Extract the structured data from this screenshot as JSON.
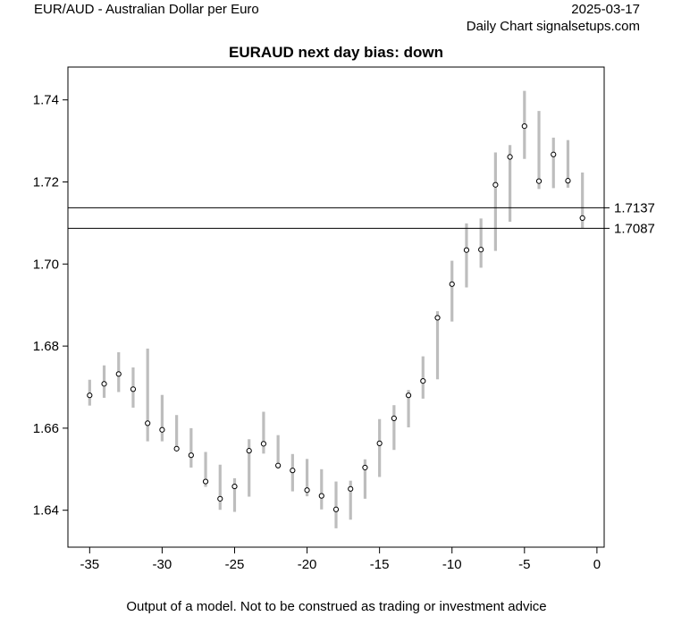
{
  "header": {
    "pair_title": "EUR/AUD - Australian Dollar per Euro",
    "date": "2025-03-17",
    "source": "Daily Chart signalsetups.com"
  },
  "footer": {
    "disclaimer": "Output of a model. Not to be construed as trading or investment advice"
  },
  "colors": {
    "range_bar": "#bdbdbd",
    "close_marker": "#000000",
    "level_line": "#000000"
  },
  "chart_data": {
    "type": "range-bar",
    "title": "EURAUD next day bias: down",
    "xlabel": "",
    "ylabel": "",
    "xlim": [
      -36.5,
      0.5
    ],
    "ylim": [
      1.631,
      1.748
    ],
    "x_ticks": [
      -35,
      -30,
      -25,
      -20,
      -15,
      -10,
      -5,
      0
    ],
    "y_ticks": [
      1.64,
      1.66,
      1.68,
      1.7,
      1.72,
      1.74
    ],
    "x_tick_labels": [
      "-35",
      "-30",
      "-25",
      "-20",
      "-15",
      "-10",
      "-5",
      "0"
    ],
    "y_tick_labels": [
      "1.64",
      "1.66",
      "1.68",
      "1.70",
      "1.72",
      "1.74"
    ],
    "grid": false,
    "levels": [
      {
        "value": 1.7137,
        "label": "1.7137"
      },
      {
        "value": 1.7087,
        "label": "1.7087"
      }
    ],
    "bars": [
      {
        "x": -35,
        "high": 1.6718,
        "low": 1.6655,
        "close": 1.668
      },
      {
        "x": -34,
        "high": 1.6753,
        "low": 1.6674,
        "close": 1.6708
      },
      {
        "x": -33,
        "high": 1.6785,
        "low": 1.6688,
        "close": 1.6732
      },
      {
        "x": -32,
        "high": 1.6748,
        "low": 1.665,
        "close": 1.6695
      },
      {
        "x": -31,
        "high": 1.6794,
        "low": 1.6568,
        "close": 1.6612
      },
      {
        "x": -30,
        "high": 1.6681,
        "low": 1.6568,
        "close": 1.6596
      },
      {
        "x": -29,
        "high": 1.6632,
        "low": 1.6544,
        "close": 1.655
      },
      {
        "x": -28,
        "high": 1.66,
        "low": 1.6504,
        "close": 1.6534
      },
      {
        "x": -27,
        "high": 1.6542,
        "low": 1.6457,
        "close": 1.647
      },
      {
        "x": -26,
        "high": 1.6511,
        "low": 1.6401,
        "close": 1.6428
      },
      {
        "x": -25,
        "high": 1.6478,
        "low": 1.6396,
        "close": 1.6458
      },
      {
        "x": -24,
        "high": 1.6573,
        "low": 1.6433,
        "close": 1.6545
      },
      {
        "x": -23,
        "high": 1.664,
        "low": 1.6538,
        "close": 1.6562
      },
      {
        "x": -22,
        "high": 1.6583,
        "low": 1.6501,
        "close": 1.6509
      },
      {
        "x": -21,
        "high": 1.6537,
        "low": 1.6446,
        "close": 1.6497
      },
      {
        "x": -20,
        "high": 1.6525,
        "low": 1.6434,
        "close": 1.6449
      },
      {
        "x": -19,
        "high": 1.65,
        "low": 1.6402,
        "close": 1.6435
      },
      {
        "x": -18,
        "high": 1.647,
        "low": 1.6356,
        "close": 1.6402
      },
      {
        "x": -17,
        "high": 1.6472,
        "low": 1.6377,
        "close": 1.6452
      },
      {
        "x": -16,
        "high": 1.6524,
        "low": 1.6428,
        "close": 1.6504
      },
      {
        "x": -15,
        "high": 1.6622,
        "low": 1.6481,
        "close": 1.6563
      },
      {
        "x": -14,
        "high": 1.6656,
        "low": 1.6547,
        "close": 1.6624
      },
      {
        "x": -13,
        "high": 1.6693,
        "low": 1.6602,
        "close": 1.668
      },
      {
        "x": -12,
        "high": 1.6775,
        "low": 1.6672,
        "close": 1.6715
      },
      {
        "x": -11,
        "high": 1.6885,
        "low": 1.6719,
        "close": 1.6869
      },
      {
        "x": -10,
        "high": 1.7008,
        "low": 1.686,
        "close": 1.6951
      },
      {
        "x": -9,
        "high": 1.7099,
        "low": 1.6943,
        "close": 1.7034
      },
      {
        "x": -8,
        "high": 1.7111,
        "low": 1.6991,
        "close": 1.7035
      },
      {
        "x": -7,
        "high": 1.7272,
        "low": 1.7032,
        "close": 1.7193
      },
      {
        "x": -6,
        "high": 1.729,
        "low": 1.7103,
        "close": 1.7261
      },
      {
        "x": -5,
        "high": 1.7422,
        "low": 1.7256,
        "close": 1.7336
      },
      {
        "x": -4,
        "high": 1.7373,
        "low": 1.7183,
        "close": 1.7202
      },
      {
        "x": -3,
        "high": 1.7308,
        "low": 1.7185,
        "close": 1.7267
      },
      {
        "x": -2,
        "high": 1.7302,
        "low": 1.7186,
        "close": 1.7203
      },
      {
        "x": -1,
        "high": 1.7223,
        "low": 1.7087,
        "close": 1.7112
      }
    ]
  }
}
